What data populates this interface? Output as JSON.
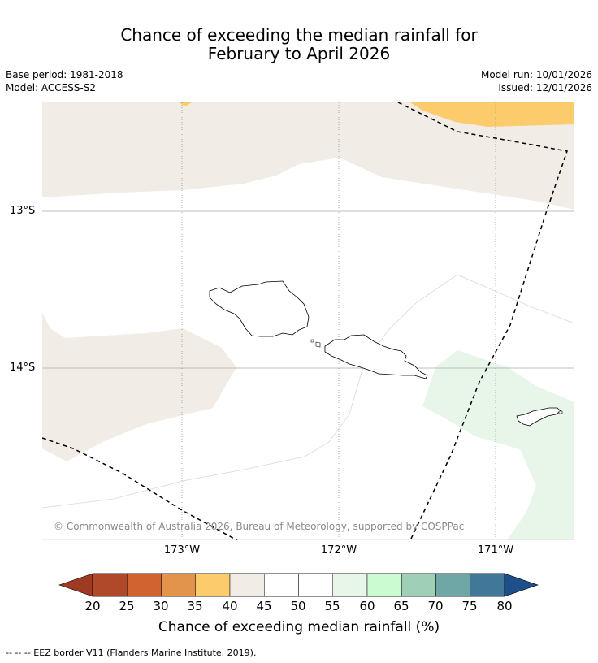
{
  "header": {
    "title_line1": "Chance of exceeding the median rainfall for",
    "title_line2": "February to April 2026",
    "base_period": "Base period: 1981-2018",
    "model": "Model: ACCESS-S2",
    "model_run": "Model run: 10/01/2026",
    "issued": "Issued: 12/01/2026"
  },
  "map": {
    "lat_labels": [
      "13°S",
      "14°S"
    ],
    "lon_labels": [
      "173°W",
      "172°W",
      "171°W"
    ],
    "copyright": "© Commonwealth of Australia 2026, Bureau of Meteorology, supported by COSPPac",
    "legend": {
      "title": "Chance of exceeding median rainfall (%)",
      "ticks": [
        "20",
        "25",
        "30",
        "35",
        "40",
        "45",
        "50",
        "55",
        "60",
        "65",
        "70",
        "75",
        "80"
      ],
      "colors": [
        "#b0492a",
        "#d0632f",
        "#e2944a",
        "#fccb6c",
        "#f1ece6",
        "#ffffff",
        "#ffffff",
        "#e8f5e9",
        "#cbfbd0",
        "#9ecfb7",
        "#6ea7a6",
        "#417799"
      ],
      "low_arrow_color": "#9e3a22",
      "high_arrow_color": "#1f4f8a"
    },
    "footnote": "-- -- -- EEZ border V11 (Flanders Marine Institute, 2019)."
  }
}
